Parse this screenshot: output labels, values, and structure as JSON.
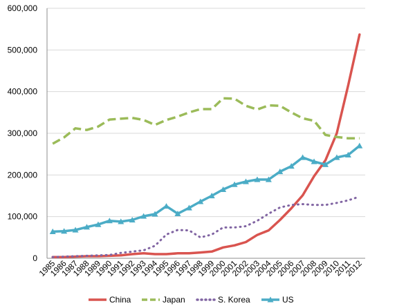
{
  "chart_data": {
    "type": "line",
    "title": "",
    "xlabel": "",
    "ylabel": "",
    "ylim": [
      0,
      600000
    ],
    "y_ticks": [
      0,
      100000,
      200000,
      300000,
      400000,
      500000,
      600000
    ],
    "y_tick_labels": [
      "0",
      "100,000",
      "200,000",
      "300,000",
      "400,000",
      "500,000",
      "600,000"
    ],
    "grid": true,
    "legend_position": "bottom",
    "categories": [
      "1985",
      "1986",
      "1987",
      "1988",
      "1989",
      "1990",
      "1991",
      "1992",
      "1993",
      "1994",
      "1995",
      "1996",
      "1997",
      "1998",
      "1999",
      "2000",
      "2001",
      "2002",
      "2003",
      "2004",
      "2005",
      "2006",
      "2007",
      "2008",
      "2009",
      "2010",
      "2011",
      "2012"
    ],
    "series": [
      {
        "name": "China",
        "color": "#d9544f",
        "style": "solid",
        "values": [
          3000,
          3000,
          4000,
          5000,
          5000,
          6000,
          7000,
          10000,
          12000,
          10000,
          10000,
          12000,
          12000,
          14000,
          16000,
          26000,
          31000,
          39000,
          56000,
          67000,
          92000,
          120000,
          151000,
          197000,
          235000,
          300000,
          415000,
          537000
        ]
      },
      {
        "name": "Japan",
        "color": "#9bbb59",
        "style": "dashed",
        "values": [
          275000,
          290000,
          312000,
          308000,
          316000,
          333000,
          335000,
          337000,
          332000,
          320000,
          332000,
          340000,
          350000,
          358000,
          358000,
          384000,
          383000,
          366000,
          357000,
          367000,
          366000,
          350000,
          336000,
          330000,
          296000,
          291000,
          288000,
          288000
        ]
      },
      {
        "name": "S. Korea",
        "color": "#8064a2",
        "style": "dotted",
        "values": [
          3000,
          4000,
          5000,
          6000,
          7000,
          8000,
          13000,
          16000,
          19000,
          30000,
          57000,
          68000,
          67000,
          50000,
          57000,
          74000,
          74000,
          77000,
          90000,
          107000,
          122000,
          128000,
          130000,
          128000,
          128000,
          133000,
          139000,
          148000
        ]
      },
      {
        "name": "US",
        "color": "#4bacc6",
        "style": "solid",
        "values": [
          64000,
          65000,
          68000,
          75000,
          81000,
          90000,
          88000,
          92000,
          101000,
          106000,
          125000,
          107000,
          121000,
          136000,
          150000,
          165000,
          177000,
          184000,
          189000,
          189000,
          208000,
          221000,
          242000,
          232000,
          225000,
          242000,
          248000,
          270000
        ]
      }
    ]
  }
}
